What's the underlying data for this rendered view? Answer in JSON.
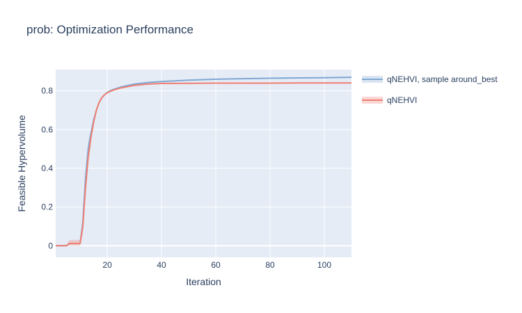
{
  "title": "prob: Optimization Performance",
  "chart_data": {
    "type": "line",
    "title": "prob: Optimization Performance",
    "xlabel": "Iteration",
    "ylabel": "Feasible Hypervolume",
    "xlim": [
      1,
      110
    ],
    "ylim": [
      -0.06,
      0.91
    ],
    "x_ticks": [
      20,
      40,
      60,
      80,
      100
    ],
    "y_ticks": [
      0,
      0.2,
      0.4,
      0.6,
      0.8
    ],
    "grid": true,
    "legend_position": "top-right-outside",
    "series": [
      {
        "name": "qNEHVI, sample around_best",
        "color": "#7fa7d3",
        "band_color": "#c3d3ea",
        "x": [
          1,
          5,
          6,
          8,
          9,
          10,
          11,
          12,
          13,
          14,
          15,
          16,
          17,
          18,
          19,
          20,
          22,
          25,
          30,
          35,
          40,
          50,
          60,
          70,
          80,
          90,
          100,
          110
        ],
        "y": [
          0,
          0,
          0.012,
          0.012,
          0.012,
          0.012,
          0.12,
          0.35,
          0.5,
          0.58,
          0.65,
          0.7,
          0.74,
          0.765,
          0.78,
          0.792,
          0.806,
          0.82,
          0.835,
          0.843,
          0.848,
          0.855,
          0.86,
          0.863,
          0.865,
          0.867,
          0.868,
          0.87
        ],
        "lower": [
          0,
          0,
          0.0,
          0.0,
          0.0,
          0.0,
          0.08,
          0.3,
          0.45,
          0.55,
          0.63,
          0.69,
          0.735,
          0.762,
          0.777,
          0.789,
          0.803,
          0.817,
          0.832,
          0.84,
          0.845,
          0.852,
          0.857,
          0.86,
          0.862,
          0.864,
          0.865,
          0.867
        ],
        "upper": [
          0,
          0,
          0.03,
          0.03,
          0.03,
          0.03,
          0.16,
          0.4,
          0.55,
          0.6,
          0.66,
          0.71,
          0.745,
          0.768,
          0.783,
          0.795,
          0.809,
          0.823,
          0.838,
          0.846,
          0.851,
          0.858,
          0.863,
          0.866,
          0.868,
          0.87,
          0.871,
          0.873
        ]
      },
      {
        "name": "qNEHVI",
        "color": "#ef7f72",
        "band_color": "#f6bdb7",
        "x": [
          1,
          5,
          6,
          8,
          9,
          10,
          11,
          12,
          13,
          14,
          15,
          16,
          17,
          18,
          19,
          20,
          22,
          25,
          30,
          35,
          40,
          50,
          60,
          70,
          80,
          90,
          100,
          110
        ],
        "y": [
          0,
          0,
          0.012,
          0.012,
          0.012,
          0.012,
          0.1,
          0.3,
          0.46,
          0.56,
          0.64,
          0.7,
          0.74,
          0.765,
          0.78,
          0.79,
          0.803,
          0.815,
          0.828,
          0.835,
          0.838,
          0.839,
          0.84,
          0.84,
          0.84,
          0.841,
          0.841,
          0.841
        ],
        "lower": [
          0,
          0,
          0.0,
          0.0,
          0.0,
          0.0,
          0.06,
          0.25,
          0.42,
          0.53,
          0.62,
          0.69,
          0.735,
          0.762,
          0.777,
          0.787,
          0.8,
          0.812,
          0.825,
          0.832,
          0.836,
          0.837,
          0.838,
          0.838,
          0.838,
          0.839,
          0.839,
          0.839
        ],
        "upper": [
          0,
          0,
          0.03,
          0.03,
          0.03,
          0.03,
          0.14,
          0.35,
          0.5,
          0.59,
          0.66,
          0.71,
          0.745,
          0.768,
          0.783,
          0.793,
          0.806,
          0.818,
          0.831,
          0.838,
          0.84,
          0.841,
          0.842,
          0.842,
          0.842,
          0.843,
          0.843,
          0.843
        ]
      }
    ]
  }
}
